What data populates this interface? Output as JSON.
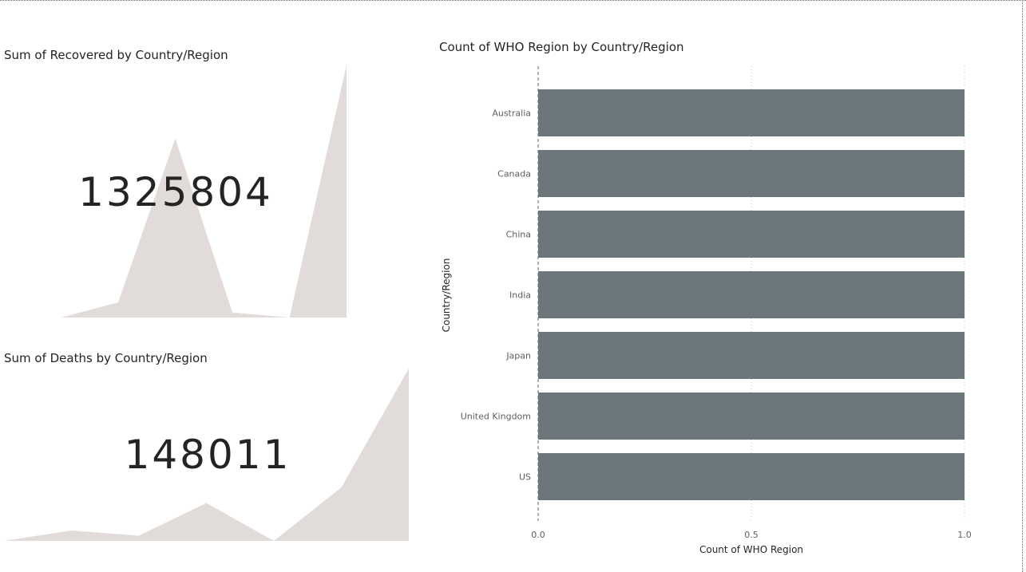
{
  "colors": {
    "sparkline_fill": "#e1dcd9",
    "bar_fill": "#6b777b",
    "text": "#252423",
    "axis_text": "#605e5c",
    "grid": "#c8c6c4"
  },
  "card_recovered": {
    "title": "Sum of Recovered by Country/Region",
    "value": "1325804",
    "trend_relative": [
      0.0,
      0.0,
      0.06,
      0.71,
      0.02,
      0.0,
      1.0
    ]
  },
  "card_deaths": {
    "title": "Sum of Deaths by Country/Region",
    "value": "148011",
    "trend_relative": [
      0.0,
      0.06,
      0.03,
      0.22,
      0.0,
      0.31,
      1.0
    ]
  },
  "chart_data": {
    "type": "bar",
    "orientation": "horizontal",
    "title": "Count of WHO Region by Country/Region",
    "xlabel": "Count of WHO Region",
    "ylabel": "Country/Region",
    "categories": [
      "Australia",
      "Canada",
      "China",
      "India",
      "Japan",
      "United Kingdom",
      "US"
    ],
    "values": [
      1,
      1,
      1,
      1,
      1,
      1,
      1
    ],
    "xlim": [
      0,
      1
    ],
    "x_ticks": [
      "0.0",
      "0.5",
      "1.0"
    ],
    "grid": true,
    "legend": "none"
  }
}
